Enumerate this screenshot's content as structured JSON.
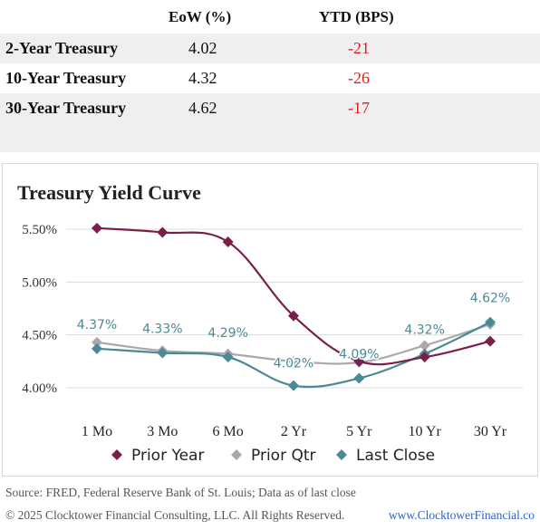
{
  "table": {
    "headers": {
      "eow": "EoW (%)",
      "ytd": "YTD (BPS)"
    },
    "rows": [
      {
        "name": "2-Year Treasury",
        "eow": "4.02",
        "ytd": "-21"
      },
      {
        "name": "10-Year Treasury",
        "eow": "4.32",
        "ytd": "-26"
      },
      {
        "name": "30-Year Treasury",
        "eow": "4.62",
        "ytd": "-17"
      }
    ]
  },
  "chart_data": {
    "type": "line",
    "title": "Treasury Yield Curve",
    "categories": [
      "1 Mo",
      "3 Mo",
      "6 Mo",
      "2 Yr",
      "5 Yr",
      "10 Yr",
      "30 Yr"
    ],
    "ylim": [
      4.0,
      5.5
    ],
    "y_ticks": [
      4.0,
      4.5,
      5.0,
      5.5
    ],
    "y_tick_labels": [
      "4.00%",
      "4.50%",
      "5.00%",
      "5.50%"
    ],
    "grid": true,
    "legend_position": "bottom",
    "series": [
      {
        "name": "Prior Year",
        "color": "#7a1f4a",
        "marker": "diamond",
        "values": [
          5.51,
          5.47,
          5.38,
          4.68,
          4.25,
          4.29,
          4.44
        ]
      },
      {
        "name": "Prior Qtr",
        "color": "#a9a9a9",
        "marker": "diamond",
        "values": [
          4.43,
          4.35,
          4.32,
          4.25,
          4.24,
          4.4,
          4.6
        ]
      },
      {
        "name": "Last Close",
        "color": "#4a8a96",
        "marker": "diamond",
        "values": [
          4.37,
          4.33,
          4.29,
          4.02,
          4.09,
          4.32,
          4.62
        ],
        "data_labels": [
          "4.37%",
          "4.33%",
          "4.29%",
          "4.02%",
          "4.09%",
          "4.32%",
          "4.62%"
        ]
      }
    ]
  },
  "footer": {
    "source": "Source: FRED, Federal Reserve Bank of St. Louis; Data as of last close",
    "copyright": "© 2025 Clocktower Financial Consulting, LLC. All Rights Reserved.",
    "website": "www.ClocktowerFinancial.co"
  }
}
